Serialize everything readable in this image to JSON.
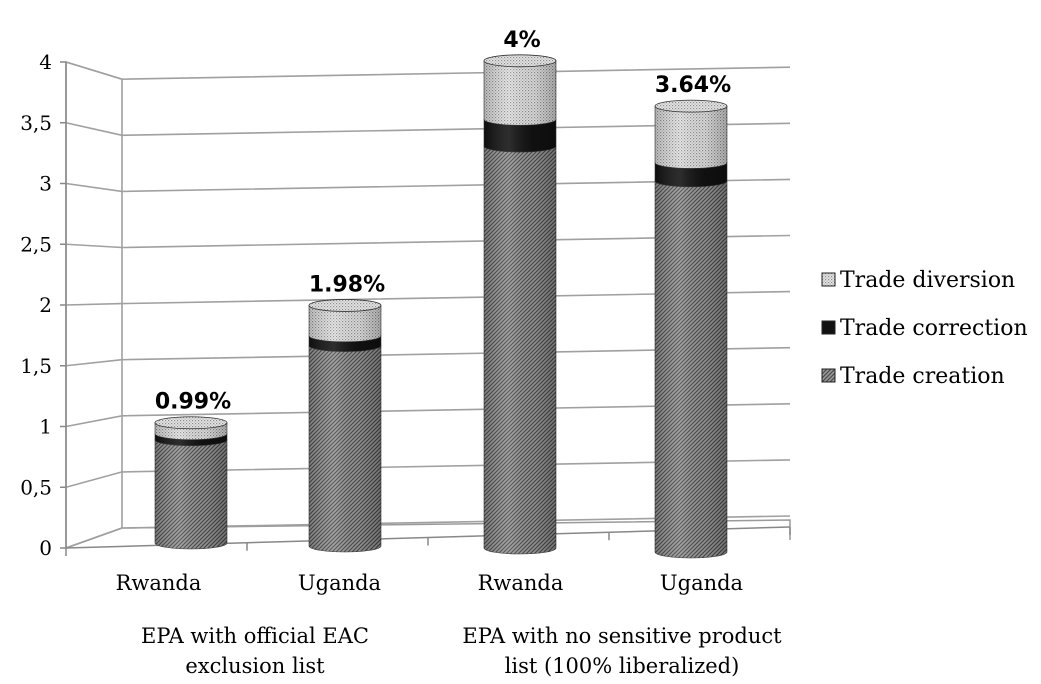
{
  "chart_data": {
    "type": "bar",
    "stacked": true,
    "categories": [
      "Rwanda",
      "Uganda",
      "Rwanda",
      "Uganda"
    ],
    "groups": [
      {
        "label": "EPA with official EAC exclusion list",
        "lines": [
          "EPA with official EAC",
          "exclusion list"
        ]
      },
      {
        "label": "EPA with no sensitive product list (100% liberalized)",
        "lines": [
          "EPA with no sensitive product",
          "list (100% liberalized)"
        ]
      }
    ],
    "series": [
      {
        "name": "Trade creation",
        "values": [
          0.85,
          1.65,
          3.3,
          3.03
        ],
        "color": "#7a7a7a",
        "pattern": "diagonal"
      },
      {
        "name": "Trade correction",
        "values": [
          0.05,
          0.08,
          0.22,
          0.15
        ],
        "color": "#111111",
        "pattern": "solid"
      },
      {
        "name": "Trade diversion",
        "values": [
          0.09,
          0.25,
          0.48,
          0.46
        ],
        "color": "#d0d0d0",
        "pattern": "dotted"
      }
    ],
    "totals": [
      0.99,
      1.98,
      4.0,
      3.64
    ],
    "data_labels": [
      "0.99%",
      "1.98%",
      "4%",
      "3.64%"
    ],
    "yticks": [
      "0",
      "0,5",
      "1",
      "1,5",
      "2",
      "2,5",
      "3",
      "3,5",
      "4"
    ],
    "ylim": [
      0,
      4
    ],
    "grid": true,
    "legend": {
      "position": "right",
      "order": [
        "Trade diversion",
        "Trade correction",
        "Trade creation"
      ]
    }
  }
}
